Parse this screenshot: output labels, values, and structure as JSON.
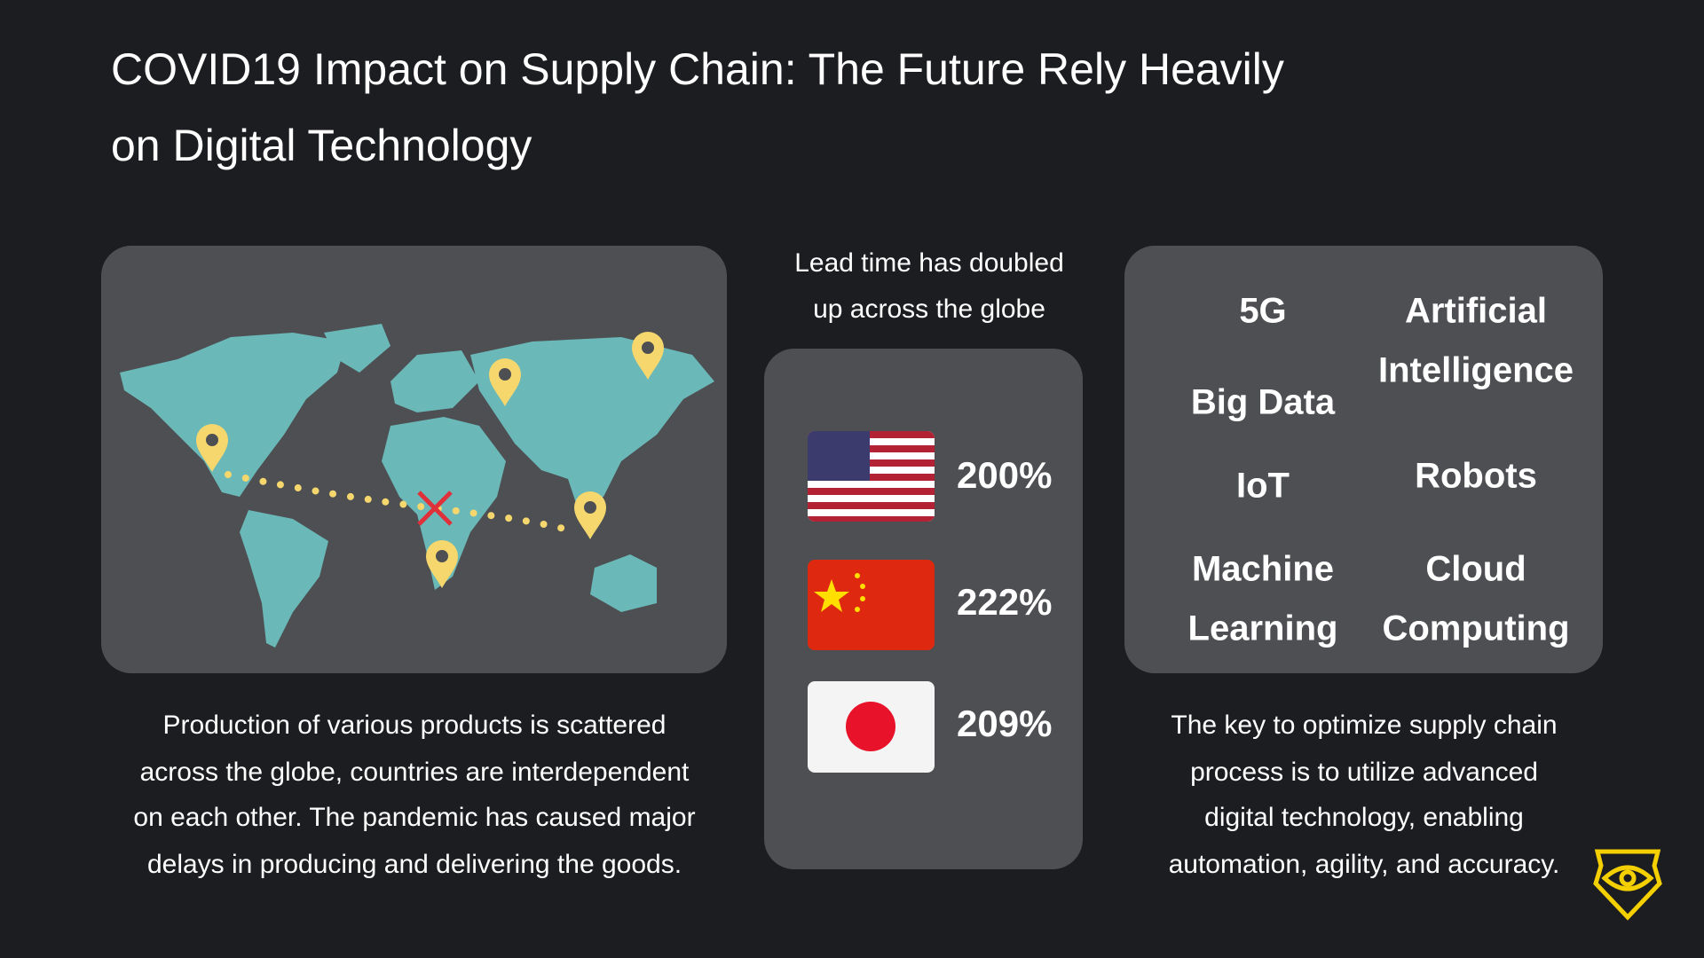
{
  "header": {
    "title_lines": [
      "COVID19 Impact on Supply Chain: The Future Rely Heavily",
      "on Digital Technology"
    ]
  },
  "map_panel": {
    "caption_lines": [
      "Production of various products is scattered",
      "across the globe, countries are interdependent",
      "on each other. The pandemic has caused major",
      "delays in producing and delivering the goods."
    ]
  },
  "lead_time": {
    "heading_lines": [
      "Lead time has doubled",
      "up across the globe"
    ],
    "values": [
      "200%",
      "222%",
      "209%"
    ]
  },
  "technologies": {
    "items": [
      {
        "lines": [
          "5G"
        ]
      },
      {
        "lines": [
          "Artificial",
          "Intelligence"
        ]
      },
      {
        "lines": [
          "Big Data"
        ]
      },
      {
        "lines": [
          "IoT"
        ]
      },
      {
        "lines": [
          "Robots"
        ]
      },
      {
        "lines": [
          "Machine",
          "Learning"
        ]
      },
      {
        "lines": [
          "Cloud",
          "Computing"
        ]
      }
    ]
  },
  "conclusion": {
    "lines": [
      "The key to optimize supply chain",
      "process is to utilize advanced",
      "digital technology, enabling",
      "automation, agility, and accuracy."
    ]
  }
}
